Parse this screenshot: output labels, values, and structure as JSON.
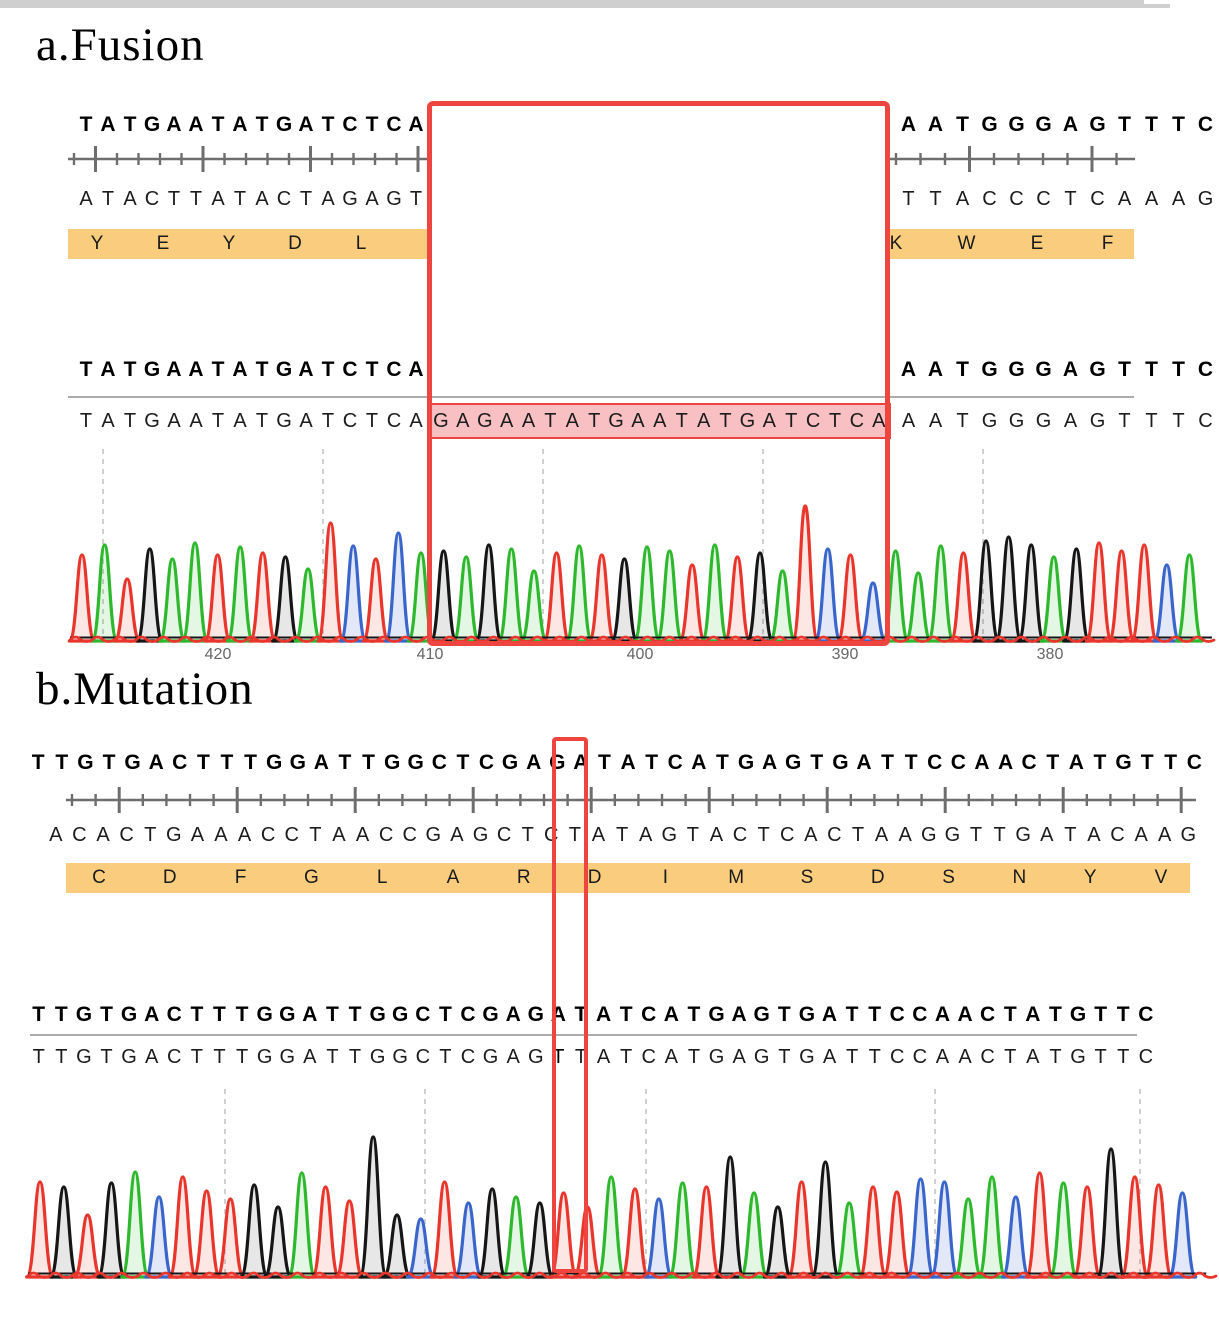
{
  "colors": {
    "trace_A": "#2db82d",
    "trace_T": "#e8362d",
    "trace_G": "#161616",
    "trace_C": "#3a66cc",
    "fill_A": "rgba(45,184,45,0.13)",
    "fill_T": "rgba(232,54,45,0.12)",
    "fill_G": "rgba(22,22,22,0.10)",
    "fill_C": "rgba(58,102,204,0.15)",
    "amino_band": "#FACD7E",
    "highlight_red": "#EE4540",
    "highlight_fill": "#F9C0C4",
    "ruler": "#6e6e6e",
    "separator": "#ABABAB",
    "dash": "#C4C4C4",
    "scale_text": "#666666",
    "baseline_strip": "#CFCFCF"
  },
  "panel_a": {
    "title": "a.Fusion",
    "ref_left": "TATGAATATGATCTCA",
    "ref_right": "AATGGGAGTTTC",
    "complement_left": "ATACTTATACTAGAGT",
    "complement_right": "TTACCCTCAAAG",
    "amino_left": [
      "Y",
      "E",
      "Y",
      "D",
      "L"
    ],
    "amino_right": [
      "K",
      "W",
      "E",
      "F"
    ],
    "query_left": "TATGAATATGATCTCA",
    "insertion": "GAGAATATGAATATGATCTCA",
    "query_right": "AATGGGAGTTTC",
    "scale_numbers": [
      "420",
      "410",
      "400",
      "390",
      "380"
    ],
    "trace_bases": "TATGAATATGATCTCAGAGAATATGAATATGATCTCAAATGGGAGTTTCA",
    "trace_heights": [
      86,
      96,
      62,
      92,
      82,
      98,
      86,
      94,
      88,
      84,
      72,
      118,
      95,
      82,
      108,
      88,
      90,
      84,
      96,
      92,
      70,
      88,
      95,
      86,
      82,
      94,
      90,
      76,
      96,
      84,
      88,
      70,
      135,
      92,
      86,
      58,
      90,
      68,
      95,
      88,
      100,
      104,
      96,
      84,
      92,
      98,
      90,
      96,
      76,
      86
    ]
  },
  "panel_b": {
    "title": "b.Mutation",
    "ref": "TGTGACTTTGGATTGGCTCGAGATATCATGAGTGATTCCAACTATGTT",
    "ref_lead": "T",
    "ref_trail": "C",
    "complement": "ACACTGAAACCTAACCGAGCTCTATAGTACTCACTAAGGTTGATACAA",
    "complement_trail": "G",
    "amino": [
      "C",
      "D",
      "F",
      "G",
      "L",
      "A",
      "R",
      "D",
      "I",
      "M",
      "S",
      "D",
      "S",
      "N",
      "Y",
      "V"
    ],
    "query": "TGTGACTTTGGATTGGCTCGAGTTATCATGAGTGATTCCAACTATGTT",
    "query_trail": "C",
    "mutation_index": 22,
    "ref_base_at_mutation": "A",
    "query_base_at_mutation": "T",
    "trace_bases": "TGTGACTTTGGATTGGCTCGAGTTATCATGAGTGATTCCAACTATGTTC",
    "trace_heights": [
      95,
      90,
      62,
      94,
      105,
      80,
      100,
      86,
      78,
      92,
      70,
      104,
      90,
      76,
      140,
      62,
      58,
      95,
      74,
      88,
      80,
      74,
      84,
      70,
      100,
      88,
      78,
      94,
      90,
      120,
      84,
      70,
      95,
      115,
      74,
      90,
      85,
      98,
      95,
      78,
      100,
      80,
      104,
      94,
      90,
      128,
      100,
      92,
      84
    ]
  }
}
